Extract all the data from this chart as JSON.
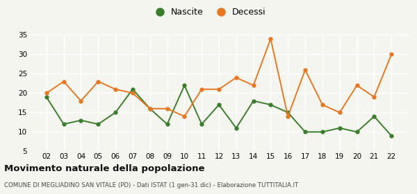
{
  "years": [
    2,
    3,
    4,
    5,
    6,
    7,
    8,
    9,
    10,
    11,
    12,
    13,
    14,
    15,
    16,
    17,
    18,
    19,
    20,
    21,
    22
  ],
  "nascite": [
    19,
    12,
    13,
    12,
    15,
    21,
    16,
    12,
    22,
    12,
    17,
    11,
    18,
    17,
    15,
    10,
    10,
    11,
    10,
    14,
    9
  ],
  "decessi": [
    20,
    23,
    18,
    23,
    21,
    20,
    16,
    16,
    14,
    21,
    21,
    24,
    22,
    34,
    14,
    26,
    17,
    15,
    22,
    19,
    30
  ],
  "nascite_color": "#3a7d2c",
  "decessi_color": "#e87722",
  "title": "Movimento naturale della popolazione",
  "subtitle": "COMUNE DI MEGLIADINO SAN VITALE (PD) - Dati ISTAT (1 gen-31 dic) - Elaborazione TUTTITALIA.IT",
  "legend_nascite": "Nascite",
  "legend_decessi": "Decessi",
  "ylim": [
    5,
    35
  ],
  "yticks": [
    5,
    10,
    15,
    20,
    25,
    30,
    35
  ],
  "background_color": "#f5f5f0",
  "grid_color": "#ffffff"
}
